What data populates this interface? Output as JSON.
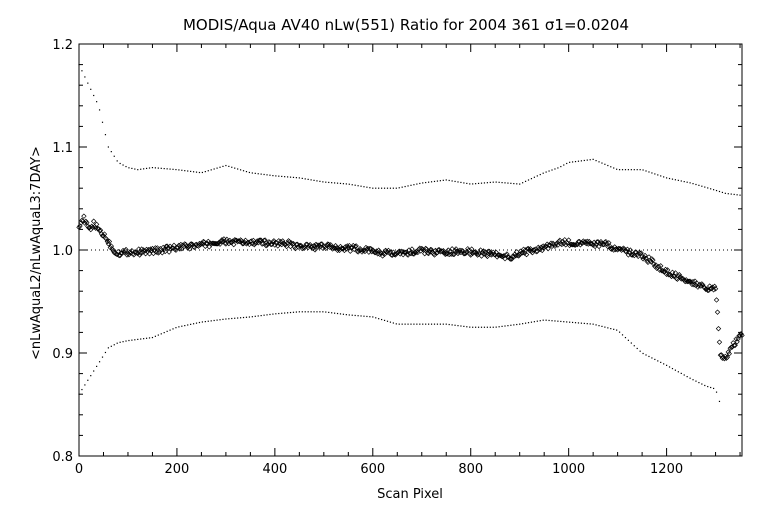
{
  "chart_data": {
    "type": "scatter",
    "title": "MODIS/Aqua AV40 nLw(551) Ratio for 2004 361 σ1=0.0204",
    "xlabel": "Scan Pixel",
    "ylabel": "<nLwAquaL2/nLwAquaL3:7DAY>",
    "xlim": [
      0,
      1354
    ],
    "ylim": [
      0.8,
      1.2
    ],
    "xticks": [
      0,
      200,
      400,
      600,
      800,
      1000,
      1200
    ],
    "xtick_labels": [
      "0",
      "200",
      "400",
      "600",
      "800",
      "1000",
      "1200"
    ],
    "yticks": [
      0.8,
      0.9,
      1.0,
      1.1,
      1.2
    ],
    "ytick_labels": [
      "0.8",
      "0.9",
      "1.0",
      "1.1",
      "1.2"
    ],
    "reference_line": 1.0,
    "grid": false,
    "legend": "none",
    "series": [
      {
        "role": "mean ratio",
        "marker": "diamond",
        "x": [
          0,
          10,
          20,
          30,
          40,
          50,
          60,
          70,
          80,
          100,
          120,
          150,
          200,
          250,
          300,
          350,
          400,
          430,
          450,
          500,
          550,
          600,
          620,
          650,
          680,
          700,
          750,
          780,
          800,
          850,
          880,
          900,
          950,
          980,
          1000,
          1050,
          1080,
          1100,
          1150,
          1180,
          1200,
          1250,
          1280,
          1300,
          1310,
          1320,
          1340,
          1354
        ],
        "y": [
          1.025,
          1.03,
          1.02,
          1.025,
          1.02,
          1.015,
          1.008,
          1.0,
          0.997,
          0.998,
          0.998,
          0.999,
          1.002,
          1.005,
          1.008,
          1.007,
          1.007,
          1.006,
          1.003,
          1.003,
          1.002,
          0.999,
          0.997,
          0.996,
          0.998,
          0.999,
          0.997,
          1.0,
          0.998,
          0.996,
          0.993,
          0.997,
          1.002,
          1.007,
          1.007,
          1.006,
          1.005,
          1.0,
          0.995,
          0.985,
          0.978,
          0.97,
          0.962,
          0.963,
          0.9,
          0.895,
          0.91,
          0.92
        ]
      },
      {
        "role": "upper bound",
        "marker": "dot",
        "x": [
          0,
          20,
          40,
          60,
          80,
          100,
          120,
          150,
          200,
          250,
          300,
          350,
          400,
          450,
          500,
          550,
          600,
          650,
          700,
          750,
          800,
          850,
          900,
          950,
          980,
          1000,
          1050,
          1080,
          1100,
          1150,
          1200,
          1250,
          1300,
          1320,
          1354
        ],
        "y": [
          1.18,
          1.16,
          1.14,
          1.1,
          1.085,
          1.08,
          1.078,
          1.08,
          1.078,
          1.075,
          1.082,
          1.075,
          1.072,
          1.07,
          1.066,
          1.064,
          1.06,
          1.06,
          1.065,
          1.068,
          1.064,
          1.066,
          1.064,
          1.075,
          1.08,
          1.085,
          1.088,
          1.082,
          1.078,
          1.078,
          1.07,
          1.065,
          1.058,
          1.055,
          1.053
        ]
      },
      {
        "role": "lower bound",
        "marker": "dot",
        "x": [
          0,
          20,
          40,
          60,
          80,
          100,
          150,
          200,
          250,
          300,
          350,
          400,
          450,
          500,
          550,
          600,
          650,
          700,
          750,
          800,
          850,
          900,
          950,
          1000,
          1050,
          1100,
          1150,
          1200,
          1250,
          1280,
          1300,
          1310
        ],
        "y": [
          0.86,
          0.875,
          0.89,
          0.905,
          0.91,
          0.912,
          0.915,
          0.925,
          0.93,
          0.933,
          0.935,
          0.938,
          0.94,
          0.94,
          0.937,
          0.935,
          0.928,
          0.928,
          0.928,
          0.925,
          0.925,
          0.928,
          0.932,
          0.93,
          0.928,
          0.922,
          0.9,
          0.888,
          0.875,
          0.868,
          0.865,
          0.85
        ]
      }
    ]
  }
}
